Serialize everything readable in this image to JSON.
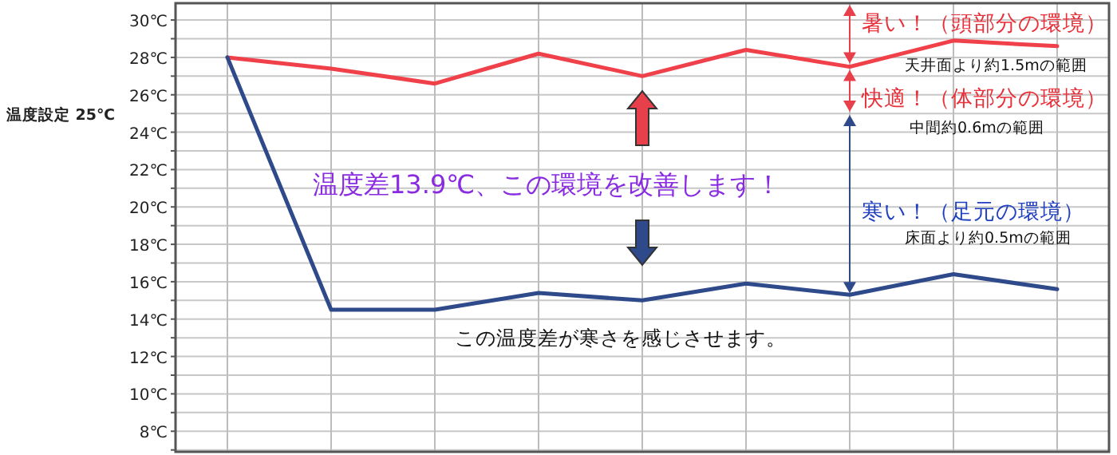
{
  "chart_data": {
    "type": "line",
    "categories": [
      null,
      null,
      null,
      null,
      null,
      null,
      null,
      null,
      null
    ],
    "series": [
      {
        "color": "#f0404a",
        "values": [
          28.0,
          27.4,
          26.6,
          28.2,
          27.0,
          28.4,
          27.5,
          28.9,
          28.6
        ]
      },
      {
        "color": "#2e4a8a",
        "values": [
          28.0,
          14.5,
          14.5,
          15.4,
          15.0,
          15.9,
          15.3,
          16.4,
          15.6
        ]
      }
    ],
    "ylim": [
      6.9,
      30.9
    ],
    "yticks": [
      {
        "value": 7,
        "label": null
      },
      {
        "value": 8,
        "label": "8℃"
      },
      {
        "value": 9,
        "label": null
      },
      {
        "value": 10,
        "label": "10℃"
      },
      {
        "value": 11,
        "label": null
      },
      {
        "value": 12,
        "label": "12℃"
      },
      {
        "value": 13,
        "label": null
      },
      {
        "value": 14,
        "label": "14℃"
      },
      {
        "value": 15,
        "label": null
      },
      {
        "value": 16,
        "label": "16℃"
      },
      {
        "value": 17,
        "label": null
      },
      {
        "value": 18,
        "label": "18℃"
      },
      {
        "value": 19,
        "label": null
      },
      {
        "value": 20,
        "label": "20℃"
      },
      {
        "value": 21,
        "label": null
      },
      {
        "value": 22,
        "label": "22℃"
      },
      {
        "value": 23,
        "label": null
      },
      {
        "value": 24,
        "label": "24℃"
      },
      {
        "value": 25,
        "label": null
      },
      {
        "value": 26,
        "label": "26℃"
      },
      {
        "value": 27,
        "label": null
      },
      {
        "value": 28,
        "label": "28℃"
      },
      {
        "value": 29,
        "label": null
      },
      {
        "value": 30,
        "label": "30℃"
      }
    ],
    "ylabel": "温度設定 25℃",
    "annotations": [
      "温度差13.9℃、この環境を改善します！",
      "この温度差が寒さを感じさせます。",
      "暑い！（頭部分の環境）",
      "天井面より約1.5mの範囲",
      "快適！（体部分の環境）",
      "中間約0.6mの範囲",
      "寒い！（足元の環境）",
      "床面より約0.5mの範囲"
    ],
    "grid": true,
    "marker": "none",
    "line_style": "solid"
  }
}
